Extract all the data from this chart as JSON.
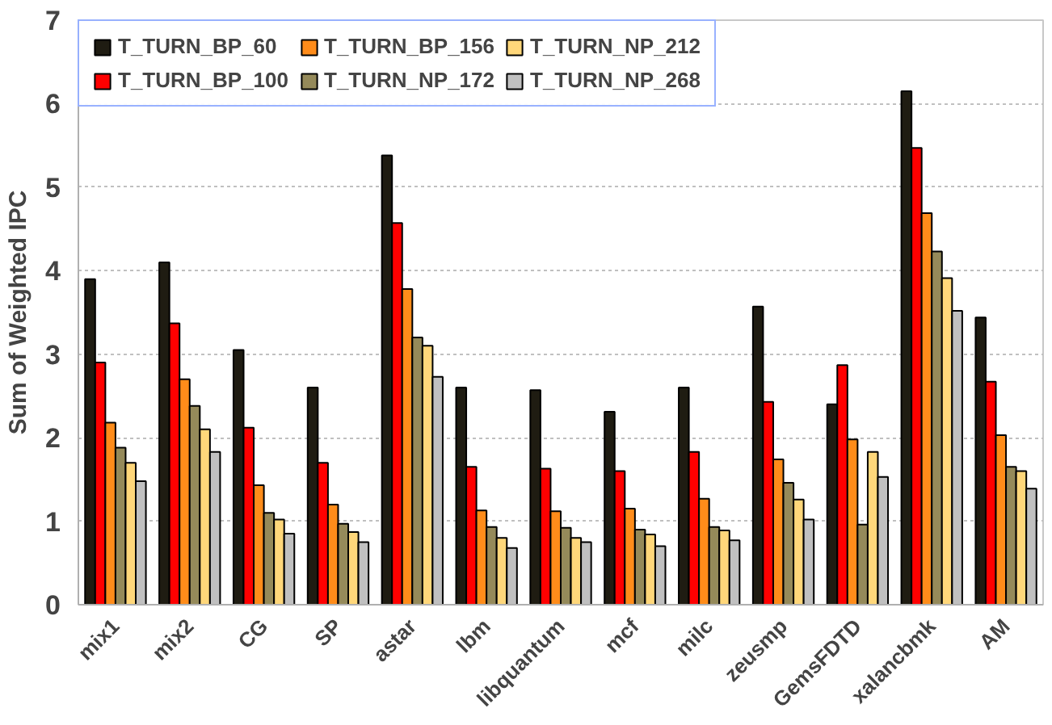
{
  "chart_data": {
    "type": "bar",
    "ylabel": "Sum of Weighted IPC",
    "categories": [
      "mix1",
      "mix2",
      "CG",
      "SP",
      "astar",
      "lbm",
      "libquantum",
      "mcf",
      "milc",
      "zeusmp",
      "GemsFDTD",
      "xalancbmk",
      "AM"
    ],
    "series": [
      {
        "name": "T_TURN_BP_60",
        "color": "#1f1c12",
        "values": [
          3.9,
          4.1,
          3.05,
          2.6,
          5.38,
          2.6,
          2.57,
          2.31,
          2.6,
          3.57,
          2.4,
          6.15,
          3.44
        ]
      },
      {
        "name": "T_TURN_BP_100",
        "color": "#ff0000",
        "values": [
          2.9,
          3.37,
          2.12,
          1.7,
          4.57,
          1.65,
          1.63,
          1.6,
          1.83,
          2.43,
          2.87,
          5.47,
          2.67
        ]
      },
      {
        "name": "T_TURN_BP_156",
        "color": "#ff8c1a",
        "values": [
          2.18,
          2.7,
          1.43,
          1.2,
          3.78,
          1.13,
          1.12,
          1.15,
          1.27,
          1.74,
          1.98,
          4.69,
          2.03
        ]
      },
      {
        "name": "T_TURN_NP_172",
        "color": "#958a5a",
        "values": [
          1.88,
          2.38,
          1.1,
          0.97,
          3.2,
          0.93,
          0.92,
          0.9,
          0.93,
          1.46,
          0.96,
          4.23,
          1.65
        ]
      },
      {
        "name": "T_TURN_NP_212",
        "color": "#ffd77a",
        "values": [
          1.7,
          2.1,
          1.02,
          0.87,
          3.1,
          0.8,
          0.8,
          0.84,
          0.89,
          1.26,
          1.83,
          3.91,
          1.6
        ]
      },
      {
        "name": "T_TURN_NP_268",
        "color": "#c0c0c0",
        "values": [
          1.48,
          1.83,
          0.85,
          0.75,
          2.73,
          0.68,
          0.75,
          0.7,
          0.77,
          1.02,
          1.53,
          3.52,
          1.39
        ]
      }
    ],
    "ylim": [
      0,
      7
    ],
    "yticks": [
      0,
      1,
      2,
      3,
      4,
      5,
      6,
      7
    ],
    "grid": "y",
    "legend": "top left"
  }
}
